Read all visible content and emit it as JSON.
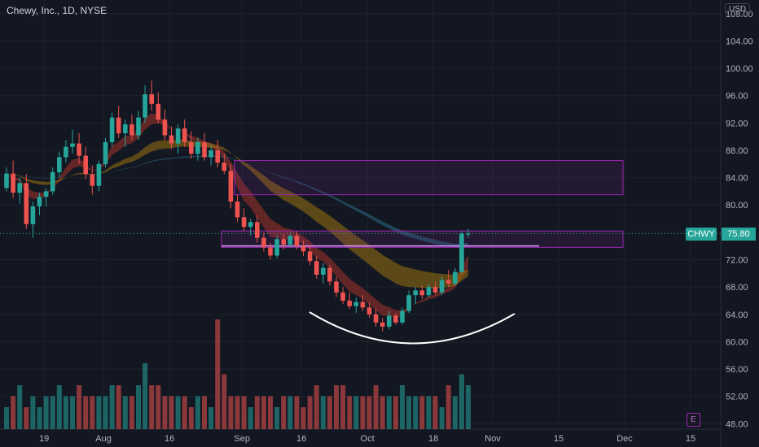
{
  "header": {
    "title": "Chewy, Inc., 1D, NYSE",
    "currency": "USD"
  },
  "last_price": {
    "ticker": "CHWY",
    "value": "75.80"
  },
  "event_marker": "E",
  "colors": {
    "background": "#131722",
    "up": "#26a69a",
    "down": "#ef5350",
    "grid": "#1e222d",
    "zone": "#9c27b0"
  },
  "chart_data": {
    "type": "candlestick",
    "title": "Chewy, Inc., 1D, NYSE",
    "y_axis": {
      "ticks": [
        "108.00",
        "104.00",
        "100.00",
        "96.00",
        "92.00",
        "88.00",
        "84.00",
        "80.00",
        "76.00",
        "72.00",
        "68.00",
        "64.00",
        "60.00",
        "56.00",
        "52.00",
        "48.00"
      ],
      "range": [
        47.2,
        110
      ]
    },
    "x_axis": {
      "ticks": [
        {
          "label": "19",
          "index": 2
        },
        {
          "label": "Aug",
          "index": 11
        },
        {
          "label": "16",
          "index": 21
        },
        {
          "label": "Sep",
          "index": 32
        },
        {
          "label": "16",
          "index": 41
        },
        {
          "label": "Oct",
          "index": 51
        },
        {
          "label": "18",
          "index": 61
        },
        {
          "label": "Nov",
          "index": 70
        },
        {
          "label": "15",
          "index": 80
        },
        {
          "label": "Dec",
          "index": 90
        },
        {
          "label": "15",
          "index": 100
        }
      ]
    },
    "ohlc": [
      [
        82.5,
        85.5,
        82.0,
        84.6
      ],
      [
        84.6,
        86.5,
        81.0,
        81.8
      ],
      [
        81.8,
        84.0,
        80.2,
        83.2
      ],
      [
        83.2,
        84.5,
        76.5,
        77.2
      ],
      [
        77.2,
        80.5,
        75.2,
        79.8
      ],
      [
        79.8,
        81.8,
        78.5,
        81.2
      ],
      [
        81.2,
        82.5,
        79.8,
        82.0
      ],
      [
        82.0,
        85.5,
        81.5,
        84.8
      ],
      [
        84.8,
        87.8,
        84.0,
        87.0
      ],
      [
        87.0,
        89.5,
        86.2,
        88.5
      ],
      [
        88.5,
        91.0,
        87.5,
        89.0
      ],
      [
        89.0,
        90.5,
        86.0,
        87.2
      ],
      [
        87.2,
        88.5,
        83.8,
        84.5
      ],
      [
        84.5,
        85.8,
        81.5,
        82.8
      ],
      [
        82.8,
        86.5,
        82.0,
        86.0
      ],
      [
        86.0,
        89.8,
        85.5,
        89.2
      ],
      [
        89.2,
        93.5,
        88.5,
        92.8
      ],
      [
        92.8,
        94.5,
        89.8,
        90.5
      ],
      [
        90.5,
        92.5,
        88.5,
        91.8
      ],
      [
        91.8,
        93.2,
        89.5,
        90.2
      ],
      [
        90.2,
        93.8,
        89.5,
        92.8
      ],
      [
        92.8,
        97.5,
        92.0,
        96.2
      ],
      [
        96.2,
        98.2,
        93.8,
        94.8
      ],
      [
        94.8,
        96.5,
        92.0,
        92.5
      ],
      [
        92.5,
        94.0,
        89.5,
        90.2
      ],
      [
        90.2,
        91.5,
        88.2,
        89.0
      ],
      [
        89.0,
        91.8,
        87.5,
        91.2
      ],
      [
        91.2,
        92.5,
        88.5,
        89.2
      ],
      [
        89.2,
        90.8,
        86.8,
        87.5
      ],
      [
        87.5,
        89.8,
        86.5,
        89.2
      ],
      [
        89.2,
        90.5,
        86.5,
        87.0
      ],
      [
        87.0,
        88.8,
        85.8,
        88.0
      ],
      [
        88.0,
        89.5,
        85.5,
        86.2
      ],
      [
        86.2,
        87.5,
        84.5,
        85.0
      ],
      [
        85.0,
        86.0,
        79.5,
        80.5
      ],
      [
        80.5,
        81.5,
        77.5,
        78.2
      ],
      [
        78.2,
        79.5,
        76.2,
        76.8
      ],
      [
        76.8,
        78.0,
        75.5,
        77.5
      ],
      [
        77.5,
        78.5,
        74.5,
        75.2
      ],
      [
        75.2,
        76.0,
        73.2,
        73.8
      ],
      [
        73.8,
        74.5,
        72.0,
        72.6
      ],
      [
        72.6,
        75.5,
        72.2,
        75.0
      ],
      [
        75.0,
        75.8,
        73.5,
        74.2
      ],
      [
        74.2,
        76.0,
        73.8,
        75.5
      ],
      [
        75.5,
        76.2,
        73.5,
        74.0
      ],
      [
        74.0,
        74.8,
        72.5,
        73.2
      ],
      [
        73.2,
        74.0,
        71.2,
        71.8
      ],
      [
        71.8,
        72.5,
        69.2,
        69.8
      ],
      [
        69.8,
        71.5,
        68.5,
        70.8
      ],
      [
        70.8,
        71.2,
        68.2,
        68.8
      ],
      [
        68.8,
        69.5,
        66.5,
        67.2
      ],
      [
        67.2,
        68.0,
        65.5,
        66.0
      ],
      [
        66.0,
        67.2,
        64.8,
        65.2
      ],
      [
        65.2,
        66.5,
        64.2,
        65.8
      ],
      [
        65.8,
        66.8,
        64.5,
        65.0
      ],
      [
        65.0,
        65.8,
        63.5,
        64.0
      ],
      [
        64.0,
        64.8,
        62.2,
        62.8
      ],
      [
        62.8,
        63.5,
        61.5,
        62.2
      ],
      [
        62.2,
        64.5,
        61.8,
        63.8
      ],
      [
        63.8,
        64.2,
        62.5,
        62.8
      ],
      [
        62.8,
        65.0,
        62.5,
        64.5
      ],
      [
        64.5,
        67.5,
        64.2,
        66.8
      ],
      [
        66.8,
        68.0,
        65.5,
        67.5
      ],
      [
        67.5,
        68.2,
        66.2,
        66.8
      ],
      [
        66.8,
        68.5,
        66.5,
        68.0
      ],
      [
        68.0,
        68.8,
        66.8,
        67.2
      ],
      [
        67.2,
        69.5,
        66.8,
        69.0
      ],
      [
        69.0,
        70.5,
        68.0,
        68.5
      ],
      [
        68.5,
        70.8,
        68.2,
        70.2
      ],
      [
        70.2,
        76.2,
        70.0,
        75.8
      ],
      [
        75.8,
        76.5,
        75.2,
        75.8
      ]
    ],
    "volume_relative": [
      0.2,
      0.3,
      0.4,
      0.2,
      0.3,
      0.2,
      0.3,
      0.3,
      0.4,
      0.3,
      0.3,
      0.4,
      0.3,
      0.3,
      0.3,
      0.3,
      0.4,
      0.4,
      0.3,
      0.3,
      0.4,
      0.6,
      0.4,
      0.4,
      0.3,
      0.3,
      0.3,
      0.3,
      0.2,
      0.3,
      0.3,
      0.2,
      1.0,
      0.5,
      0.3,
      0.3,
      0.3,
      0.2,
      0.3,
      0.3,
      0.3,
      0.2,
      0.3,
      0.3,
      0.3,
      0.2,
      0.3,
      0.4,
      0.3,
      0.3,
      0.4,
      0.4,
      0.3,
      0.3,
      0.3,
      0.3,
      0.4,
      0.3,
      0.3,
      0.3,
      0.4,
      0.3,
      0.3,
      0.3,
      0.3,
      0.3,
      0.2,
      0.4,
      0.3,
      0.5,
      0.4
    ],
    "resistance_zones": [
      {
        "top": 86.5,
        "bottom": 81.5
      },
      {
        "top": 76.2,
        "bottom": 73.8
      }
    ],
    "horizontal_level": 74.0,
    "last_price_line": 75.8
  }
}
